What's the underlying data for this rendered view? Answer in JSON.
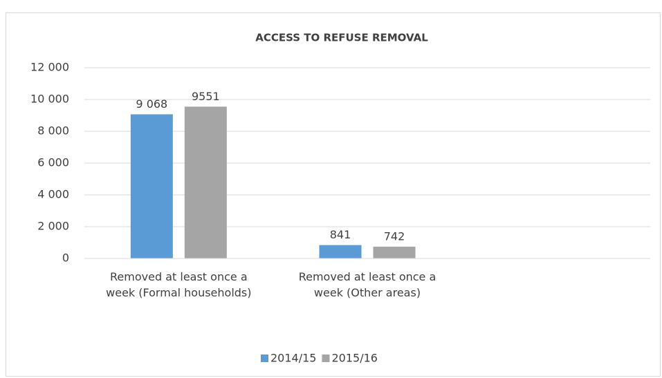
{
  "chart_data": {
    "type": "bar",
    "title": "ACCESS TO REFUSE REMOVAL",
    "categories": [
      "Removed at least once a week (Formal households)",
      "Removed at least once a week (Other areas)",
      null
    ],
    "series": [
      {
        "name": "2014/15",
        "color": "#5b9bd5",
        "values": [
          9068,
          841,
          null
        ],
        "value_labels": [
          "9 068",
          "841",
          null
        ]
      },
      {
        "name": "2015/16",
        "color": "#a5a5a5",
        "values": [
          9551,
          742,
          null
        ]
      }
    ],
    "ylim": [
      0,
      12000
    ],
    "yticks": [
      0,
      {
        "value": 2000,
        "label": "2 000"
      },
      {
        "value": 4000,
        "label": "4 000"
      },
      {
        "value": 6000,
        "label": "6 000"
      },
      {
        "value": 8000,
        "label": "8 000"
      },
      {
        "value": 10000,
        "label": "10 000"
      },
      {
        "value": 12000,
        "label": "12 000"
      }
    ],
    "grid": true,
    "legend": "bottom"
  }
}
